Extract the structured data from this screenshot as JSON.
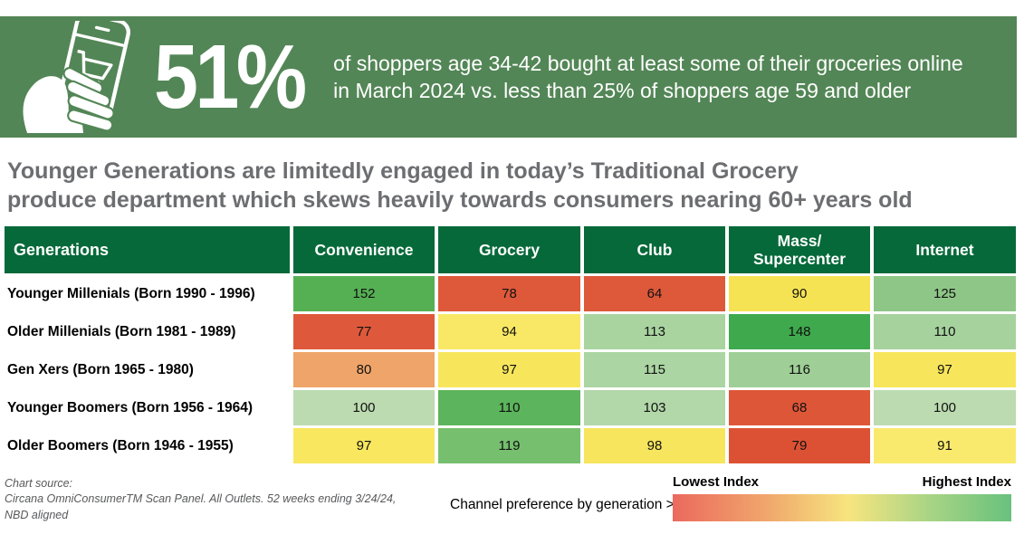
{
  "banner": {
    "bg": "#538656",
    "stat": "51%",
    "desc_line1": "of shoppers age 34-42 bought at least some of their groceries online",
    "desc_line2": "in March 2024 vs. less than 25% of shoppers age 59 and older"
  },
  "headline": {
    "color": "#6d6e71",
    "line1": "Younger Generations are limitedly engaged in today’s Traditional Grocery",
    "line2": "produce department which skews heavily towards consumers nearing 60+ years old"
  },
  "chart_data": {
    "type": "heatmap",
    "title": "Younger Generations are limitedly engaged in today’s Traditional Grocery produce department which skews heavily towards consumers nearing 60+ years old",
    "stat_callout": "51% of shoppers age 34-42 bought at least some of their groceries online in March 2024 vs. less than 25% of shoppers age 59 and older",
    "corner_label": "Generations",
    "header_bg": "#066939",
    "columns": [
      "Convenience",
      "Grocery",
      "Club",
      "Mass/\nSupercenter",
      "Internet"
    ],
    "rows": [
      {
        "label": "Younger Millenials (Born 1990 - 1996)",
        "values": [
          152,
          78,
          64,
          90,
          125
        ],
        "colors": [
          "#55b054",
          "#de593a",
          "#dd593a",
          "#f6e353",
          "#8ec687"
        ]
      },
      {
        "label": "Older Millenials (Born 1981 - 1989)",
        "values": [
          77,
          94,
          113,
          148,
          110
        ],
        "colors": [
          "#de593b",
          "#f8e865",
          "#a9d4a0",
          "#3fa94d",
          "#a6d29d"
        ]
      },
      {
        "label": "Gen Xers (Born 1965 - 1980)",
        "values": [
          80,
          97,
          115,
          116,
          97
        ],
        "colors": [
          "#efa569",
          "#f7e65c",
          "#abd5a2",
          "#9fcf97",
          "#f7e65c"
        ]
      },
      {
        "label": "Younger Boomers (Born 1956 - 1964)",
        "values": [
          100,
          110,
          103,
          68,
          100
        ],
        "colors": [
          "#bcdbb1",
          "#5cb55c",
          "#b2d7a9",
          "#de5638",
          "#bcdbb1"
        ]
      },
      {
        "label": "Older Boomers (Born 1946 - 1955)",
        "values": [
          97,
          119,
          98,
          79,
          91
        ],
        "colors": [
          "#f8e75f",
          "#76bf6e",
          "#f6e55d",
          "#dc5133",
          "#f9ea6e"
        ]
      }
    ],
    "legend": {
      "note": "Channel preference by generation >",
      "low_label": "Lowest Index",
      "high_label": "Highest Index",
      "gradient": [
        "#ec695e 0%",
        "#f0a76c 28%",
        "#f7e57f 52%",
        "#abd585 75%",
        "#68c17d 100%"
      ]
    }
  },
  "footer": {
    "source_line1": "Chart source:",
    "source_line2": "Circana OmniConsumerTM Scan Panel. All Outlets. 52 weeks ending 3/24/24,",
    "source_line3": "NBD aligned"
  }
}
